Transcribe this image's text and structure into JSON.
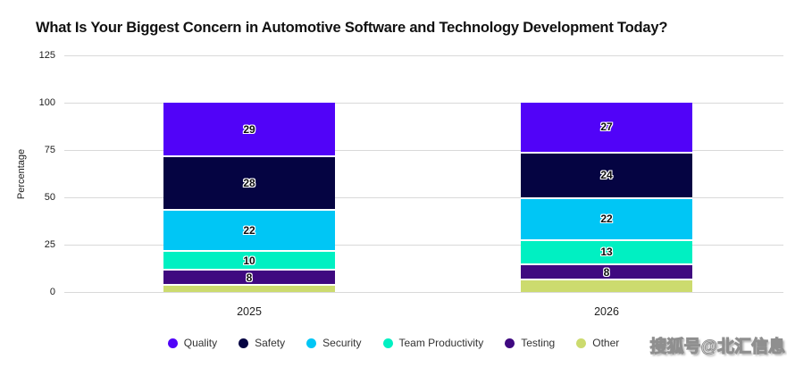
{
  "watermark": "搜狐号@北汇信息",
  "chart_data": {
    "type": "bar",
    "stacked": true,
    "title": "What Is Your Biggest Concern in Automotive Software and Technology Development Today?",
    "xlabel": "",
    "ylabel": "Percentage",
    "ylim": [
      0,
      125
    ],
    "yticks": [
      0,
      25,
      50,
      75,
      100,
      125
    ],
    "grid": true,
    "legend_position": "bottom",
    "categories": [
      "2025",
      "2026"
    ],
    "series": [
      {
        "name": "Quality",
        "color": "#5103F8",
        "values": [
          29,
          27
        ],
        "labels_shown": true
      },
      {
        "name": "Safety",
        "color": "#050442",
        "values": [
          28,
          24
        ],
        "labels_shown": true
      },
      {
        "name": "Security",
        "color": "#00C6F5",
        "values": [
          22,
          22
        ],
        "labels_shown": true
      },
      {
        "name": "Team Productivity",
        "color": "#00F0C2",
        "values": [
          10,
          13
        ],
        "labels_shown": true
      },
      {
        "name": "Testing",
        "color": "#3F0980",
        "values": [
          8,
          8
        ],
        "labels_shown": true
      },
      {
        "name": "Other",
        "color": "#CCDB6E",
        "values": [
          3,
          6
        ],
        "labels_shown": false
      }
    ],
    "stack_order_top_to_bottom": [
      "Quality",
      "Safety",
      "Security",
      "Team Productivity",
      "Testing",
      "Other"
    ],
    "totals": [
      100,
      100
    ]
  }
}
